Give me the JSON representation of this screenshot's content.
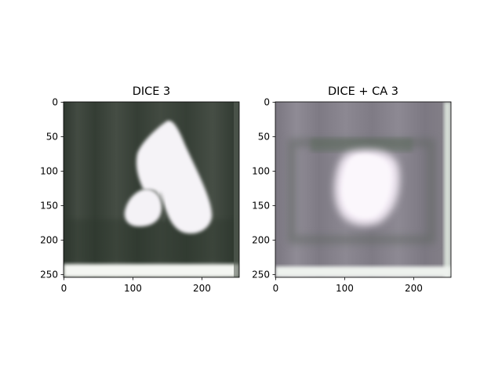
{
  "figure": {
    "panels": [
      {
        "title": "DICE 3",
        "x_ticks": [
          "0",
          "100",
          "200"
        ],
        "y_ticks": [
          "0",
          "50",
          "100",
          "150",
          "200",
          "250"
        ]
      },
      {
        "title": "DICE + CA 3",
        "x_ticks": [
          "0",
          "100",
          "200"
        ],
        "y_ticks": [
          "0",
          "50",
          "100",
          "150",
          "200",
          "250"
        ]
      }
    ],
    "colors": {
      "panel1_background": "#3a4238",
      "panel1_shape": "#f4f2f6",
      "panel2_background": "#8a8690",
      "panel2_blob": "#f2eaf4"
    }
  }
}
